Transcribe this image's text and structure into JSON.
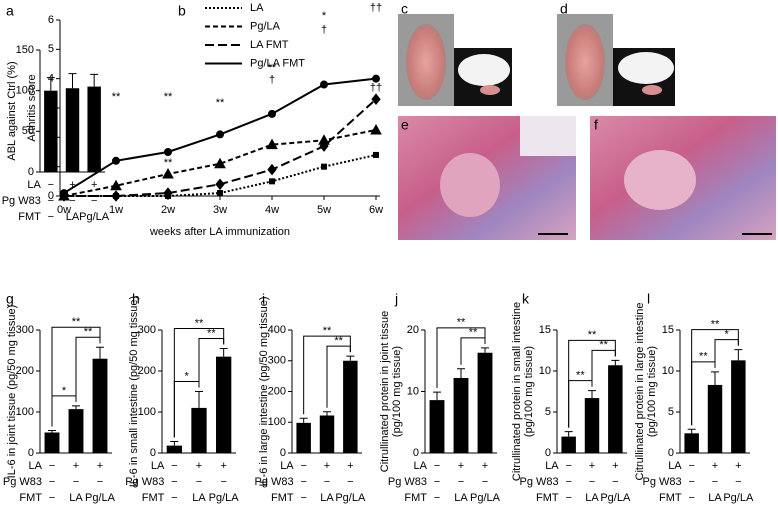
{
  "chart_data": [
    {
      "type": "bar",
      "label": "a",
      "ylabel": [
        "ABL against Ctrl (%)"
      ],
      "color": "#000000",
      "values": [
        100,
        103,
        105
      ],
      "errors": [
        16,
        18,
        15
      ],
      "ylim": [
        0,
        150
      ],
      "yticks": [
        0,
        50,
        100,
        150
      ],
      "brackets": []
    },
    {
      "type": "line",
      "label": "b",
      "ylabel": [
        "Arthritis score"
      ],
      "xlabel": "weeks after LA immunization",
      "categories": [
        "0w",
        "1w",
        "2w",
        "3w",
        "4w",
        "5w",
        "6w"
      ],
      "ylim": [
        0,
        6
      ],
      "yticks": [
        0,
        1,
        2,
        3,
        4,
        5,
        6
      ],
      "series": [
        {
          "name": "LA",
          "color": "#000000",
          "dash": "dotted",
          "marker": "square",
          "values": [
            0,
            0,
            0,
            0.1,
            0.5,
            1.0,
            1.4
          ]
        },
        {
          "name": "Pg/LA",
          "color": "#000000",
          "dash": "dashed",
          "marker": "triangle",
          "values": [
            0,
            0.35,
            0.75,
            1.1,
            1.75,
            1.9,
            2.25
          ]
        },
        {
          "name": "LA FMT",
          "color": "#000000",
          "dash": "long-dashed",
          "marker": "diamond",
          "values": [
            0,
            0,
            0.1,
            0.4,
            0.9,
            1.7,
            3.3
          ]
        },
        {
          "name": "Pg/LA FMT",
          "color": "#000000",
          "dash": "solid",
          "marker": "circle",
          "values": [
            0.1,
            1.2,
            1.5,
            2.1,
            2.8,
            3.8,
            4.0
          ]
        }
      ],
      "annotations": [
        "**",
        "**",
        "**",
        "**",
        "**",
        "†",
        "*",
        "†",
        "††",
        "††"
      ]
    },
    {
      "type": "bar",
      "label": "g",
      "ylabel": [
        "IL-6 in joint tissue (pg/50 mg tissue)"
      ],
      "color": "#000000",
      "values": [
        50,
        107,
        230
      ],
      "errors": [
        5,
        8,
        28
      ],
      "ylim": [
        0,
        300
      ],
      "yticks": [
        0,
        100,
        200,
        300
      ],
      "brackets": [
        "*",
        "**",
        "**"
      ]
    },
    {
      "type": "bar",
      "label": "h",
      "ylabel": [
        "IL-6 in small intestine (pg/50 mg tissue)"
      ],
      "color": "#000000",
      "values": [
        18,
        110,
        235
      ],
      "errors": [
        10,
        40,
        20
      ],
      "ylim": [
        0,
        300
      ],
      "yticks": [
        0,
        100,
        200,
        300
      ],
      "brackets": [
        "*",
        "**",
        "**"
      ]
    },
    {
      "type": "bar",
      "label": "i",
      "ylabel": [
        "IL-6 in large intestine (pg/50 mg tissue)"
      ],
      "color": "#000000",
      "values": [
        98,
        122,
        300
      ],
      "errors": [
        15,
        12,
        15
      ],
      "ylim": [
        0,
        400
      ],
      "yticks": [
        0,
        100,
        200,
        300,
        400
      ],
      "brackets": [
        "**",
        "**"
      ]
    },
    {
      "type": "bar",
      "label": "j",
      "ylabel": [
        "Citrullinated protein in joint tissue",
        "(pg/100 mg tissue)"
      ],
      "color": "#000000",
      "values": [
        8.6,
        12.2,
        16.3
      ],
      "errors": [
        1.3,
        1.5,
        0.8
      ],
      "ylim": [
        0,
        20
      ],
      "yticks": [
        0,
        10,
        20
      ],
      "brackets": [
        "**",
        "**"
      ]
    },
    {
      "type": "bar",
      "label": "k",
      "ylabel": [
        "Citrullinated protein in small intestine",
        "(pg/100 mg tissue)"
      ],
      "color": "#000000",
      "values": [
        2,
        6.7,
        10.7
      ],
      "errors": [
        0.6,
        0.9,
        0.6
      ],
      "ylim": [
        0,
        15
      ],
      "yticks": [
        0,
        5,
        10,
        15
      ],
      "brackets": [
        "**",
        "**",
        "**"
      ]
    },
    {
      "type": "bar",
      "label": "l",
      "ylabel": [
        "Citrullinated protein in large intestine",
        "(pg/100 mg tissue)"
      ],
      "color": "#000000",
      "values": [
        2.4,
        8.3,
        11.3
      ],
      "errors": [
        0.5,
        1.6,
        1.3
      ],
      "ylim": [
        0,
        15
      ],
      "yticks": [
        0,
        5,
        10,
        15
      ],
      "brackets": [
        "**",
        "*",
        "**"
      ]
    }
  ],
  "conditions": {
    "rows": [
      {
        "name": "LA",
        "values": [
          "−",
          "+",
          "+"
        ]
      },
      {
        "name": "Pg W83",
        "values": [
          "−",
          "−",
          "−"
        ]
      },
      {
        "name": "FMT",
        "values": [
          "−",
          "LA",
          "Pg/LA"
        ]
      }
    ]
  },
  "photos": [
    {
      "label": "c"
    },
    {
      "label": "d"
    },
    {
      "label": "e"
    },
    {
      "label": "f"
    }
  ]
}
